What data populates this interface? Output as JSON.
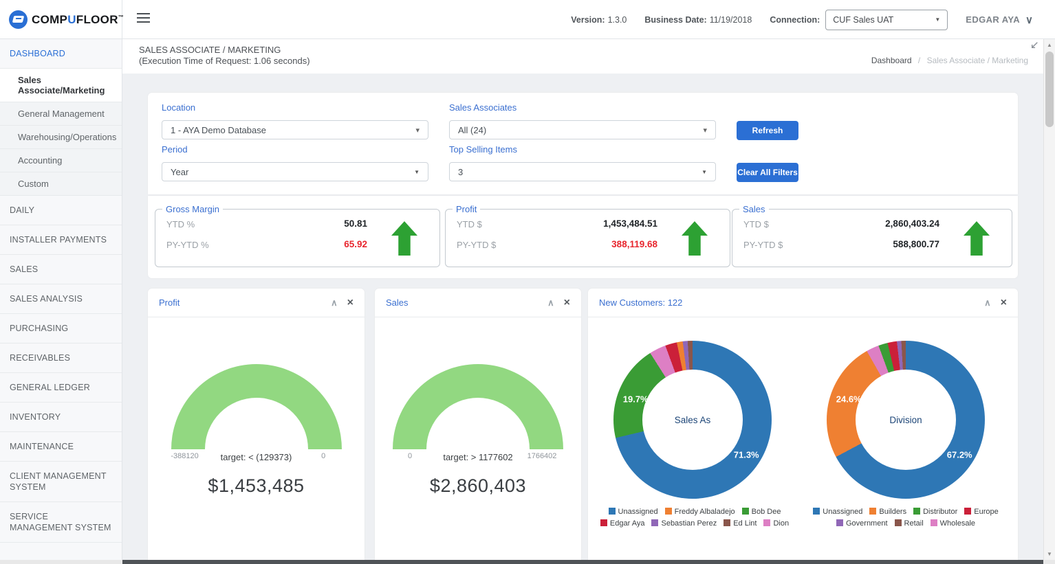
{
  "header": {
    "brand": "COMPUFLOOR",
    "brand_tm": "™",
    "version_label": "Version:",
    "version_value": "1.3.0",
    "business_date_label": "Business Date:",
    "business_date_value": "11/19/2018",
    "connection_label": "Connection:",
    "connection_value": "CUF Sales UAT",
    "user_name": "EDGAR AYA"
  },
  "icons": {
    "panel_collapse": "∧",
    "panel_close": "×",
    "caret_full": "▼",
    "caret_thin": "▾",
    "user_chevron": "∨",
    "scroll_up": "▲",
    "scroll_down": "▼"
  },
  "sidebar": {
    "items": [
      {
        "label": "DASHBOARD",
        "active": true
      },
      {
        "label": "Sales Associate/Marketing",
        "active": true
      },
      {
        "label": "General Management"
      },
      {
        "label": "Warehousing/Operations"
      },
      {
        "label": "Accounting"
      },
      {
        "label": "Custom"
      },
      {
        "label": "DAILY"
      },
      {
        "label": "INSTALLER PAYMENTS"
      },
      {
        "label": "SALES"
      },
      {
        "label": "SALES ANALYSIS"
      },
      {
        "label": "PURCHASING"
      },
      {
        "label": "RECEIVABLES"
      },
      {
        "label": "GENERAL LEDGER"
      },
      {
        "label": "INVENTORY"
      },
      {
        "label": "MAINTENANCE"
      },
      {
        "label": "CLIENT MANAGEMENT SYSTEM"
      },
      {
        "label": "SERVICE MANAGEMENT SYSTEM"
      }
    ]
  },
  "page": {
    "title": "SALES ASSOCIATE / MARKETING",
    "subtitle": "(Execution Time of Request: 1.06 seconds)",
    "breadcrumb_root": "Dashboard",
    "breadcrumb_sep": "/",
    "breadcrumb_current": "Sales Associate / Marketing"
  },
  "filters": {
    "location_label": "Location",
    "location_value": "1 - AYA Demo Database",
    "sales_associates_label": "Sales Associates",
    "sales_associates_value": "All (24)",
    "period_label": "Period",
    "period_value": "Year",
    "top_selling_label": "Top Selling Items",
    "top_selling_value": "3",
    "refresh_label": "Refresh",
    "clear_label": "Clear All Filters"
  },
  "kpis": {
    "gross_margin": {
      "title": "Gross Margin",
      "row1_label": "YTD %",
      "row1_value": "50.81",
      "row2_label": "PY-YTD %",
      "row2_value": "65.92"
    },
    "profit": {
      "title": "Profit",
      "row1_label": "YTD $",
      "row1_value": "1,453,484.51",
      "row2_label": "PY-YTD $",
      "row2_value": "388,119.68"
    },
    "sales": {
      "title": "Sales",
      "row1_label": "YTD $",
      "row1_value": "2,860,403.24",
      "row2_label": "PY-YTD $",
      "row2_value": "588,800.77"
    }
  },
  "panels": {
    "profit": {
      "title": "Profit",
      "gauge_min": "-388120",
      "gauge_target": "target: < (129373)",
      "gauge_max": "0",
      "total": "$1,453,485",
      "gauge_color": "#92d881"
    },
    "sales": {
      "title": "Sales",
      "gauge_min": "0",
      "gauge_target": "target: > 1177602",
      "gauge_max": "1766402",
      "total": "$2,860,403",
      "gauge_color": "#92d881"
    },
    "customers": {
      "title": "New Customers: 122",
      "sales_as": {
        "center_label": "Sales As",
        "big_pct": "71.3%",
        "small_pct": "19.7%",
        "segments": [
          {
            "label": "Unassigned",
            "value": 71.3,
            "color": "#2e77b5"
          },
          {
            "label": "Bob Dee",
            "value": 19.7,
            "color": "#3a9c35"
          },
          {
            "label": "Dion",
            "value": 3.4,
            "color": "#dd7fc4"
          },
          {
            "label": "Edgar Aya",
            "value": 2.4,
            "color": "#cb2039"
          },
          {
            "label": "Freddy Albaladejo",
            "value": 1.2,
            "color": "#ef8032"
          },
          {
            "label": "Sebastian Perez",
            "value": 1.0,
            "color": "#9067b7"
          },
          {
            "label": "Ed Lint",
            "value": 1.0,
            "color": "#8a564b"
          }
        ],
        "legend_rows": [
          [
            {
              "label": "Unassigned",
              "color": "#2e77b5"
            },
            {
              "label": "Freddy Albaladejo",
              "color": "#ef8032"
            },
            {
              "label": "Bob Dee",
              "color": "#3a9c35"
            }
          ],
          [
            {
              "label": "Edgar Aya",
              "color": "#cb2039"
            },
            {
              "label": "Sebastian Perez",
              "color": "#9067b7"
            },
            {
              "label": "Ed Lint",
              "color": "#8a564b"
            },
            {
              "label": "Dion",
              "color": "#dd7fc4"
            }
          ]
        ]
      },
      "division": {
        "center_label": "Division",
        "big_pct": "67.2%",
        "small_pct": "24.6%",
        "segments": [
          {
            "label": "Unassigned",
            "value": 67.2,
            "color": "#2e77b5"
          },
          {
            "label": "Builders",
            "value": 24.6,
            "color": "#ef8032"
          },
          {
            "label": "Wholesale",
            "value": 2.6,
            "color": "#dd7fc4"
          },
          {
            "label": "Distributor",
            "value": 1.9,
            "color": "#3a9c35"
          },
          {
            "label": "Europe",
            "value": 1.9,
            "color": "#cb2039"
          },
          {
            "label": "Government",
            "value": 0.9,
            "color": "#9067b7"
          },
          {
            "label": "Retail",
            "value": 0.9,
            "color": "#8a564b"
          }
        ],
        "legend_rows": [
          [
            {
              "label": "Unassigned",
              "color": "#2e77b5"
            },
            {
              "label": "Builders",
              "color": "#ef8032"
            },
            {
              "label": "Distributor",
              "color": "#3a9c35"
            },
            {
              "label": "Europe",
              "color": "#cb2039"
            }
          ],
          [
            {
              "label": "Government",
              "color": "#9067b7"
            },
            {
              "label": "Retail",
              "color": "#8a564b"
            },
            {
              "label": "Wholesale",
              "color": "#dd7fc4"
            }
          ]
        ]
      }
    }
  },
  "chart_data": [
    {
      "type": "area",
      "subtype": "half-donut-gauge",
      "title": "Profit",
      "min": -388120,
      "max": 0,
      "target": "< (129373)",
      "value": 1453485,
      "value_label": "$1,453,485",
      "color": "#92d881"
    },
    {
      "type": "area",
      "subtype": "half-donut-gauge",
      "title": "Sales",
      "min": 0,
      "max": 1766402,
      "target": "> 1177602",
      "value": 2860403,
      "value_label": "$2,860,403",
      "color": "#92d881"
    },
    {
      "type": "pie",
      "title": "Sales As",
      "donut": true,
      "categories": [
        "Unassigned",
        "Bob Dee",
        "Dion",
        "Edgar Aya",
        "Freddy Albaladejo",
        "Sebastian Perez",
        "Ed Lint"
      ],
      "values": [
        71.3,
        19.7,
        3.4,
        2.4,
        1.2,
        1.0,
        1.0
      ],
      "labels_shown": [
        "71.3%",
        "19.7%"
      ],
      "legend_position": "bottom"
    },
    {
      "type": "pie",
      "title": "Division",
      "donut": true,
      "categories": [
        "Unassigned",
        "Builders",
        "Wholesale",
        "Distributor",
        "Europe",
        "Government",
        "Retail"
      ],
      "values": [
        67.2,
        24.6,
        2.6,
        1.9,
        1.9,
        0.9,
        0.9
      ],
      "labels_shown": [
        "67.2%",
        "24.6%"
      ],
      "legend_position": "bottom"
    }
  ]
}
